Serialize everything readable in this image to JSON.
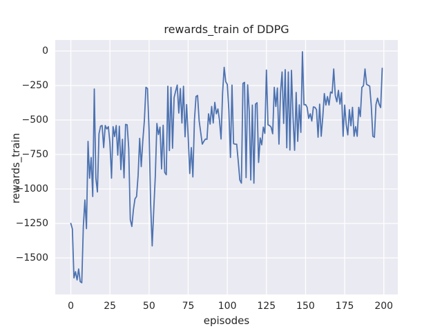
{
  "chart_data": {
    "type": "line",
    "title": "rewards_train of DDPG",
    "xlabel": "episodes",
    "ylabel": "rewards_train",
    "legend": false,
    "grid": true,
    "line_color": "#4c72b0",
    "plot_background": "#eaeaf2",
    "gridline_color": "#ffffff",
    "figure_background": "#ffffff",
    "text_color": "#262626",
    "x_start": 0,
    "x_step": 1,
    "xlim": [
      -9.95,
      208.95
    ],
    "ylim": [
      -1765,
      80
    ],
    "xticks": [
      0,
      25,
      50,
      75,
      100,
      125,
      150,
      175,
      200
    ],
    "yticks": [
      0,
      -250,
      -500,
      -750,
      -1000,
      -1250,
      -1500
    ],
    "values": [
      -1250,
      -1290,
      -1645,
      -1600,
      -1660,
      -1580,
      -1672,
      -1680,
      -1270,
      -1080,
      -1288,
      -655,
      -922,
      -772,
      -1055,
      -275,
      -922,
      -1022,
      -600,
      -545,
      -540,
      -700,
      -540,
      -565,
      -548,
      -668,
      -922,
      -548,
      -620,
      -540,
      -755,
      -545,
      -860,
      -640,
      -920,
      -532,
      -535,
      -705,
      -1222,
      -1272,
      -1150,
      -1072,
      -1055,
      -903,
      -633,
      -838,
      -650,
      -505,
      -263,
      -272,
      -573,
      -1105,
      -1413,
      -1150,
      -905,
      -525,
      -605,
      -552,
      -855,
      -538,
      -880,
      -897,
      -255,
      -722,
      -263,
      -705,
      -338,
      -290,
      -247,
      -450,
      -272,
      -522,
      -255,
      -622,
      -388,
      -622,
      -888,
      -700,
      -913,
      -500,
      -330,
      -322,
      -505,
      -590,
      -675,
      -655,
      -638,
      -640,
      -455,
      -530,
      -402,
      -522,
      -372,
      -455,
      -420,
      -502,
      -638,
      -300,
      -118,
      -222,
      -242,
      -430,
      -772,
      -247,
      -672,
      -675,
      -676,
      -800,
      -935,
      -958,
      -235,
      -227,
      -918,
      -245,
      -435,
      -935,
      -392,
      -958,
      -385,
      -375,
      -808,
      -630,
      -680,
      -552,
      -597,
      -138,
      -535,
      -540,
      -552,
      -600,
      -263,
      -402,
      -268,
      -675,
      -300,
      -152,
      -525,
      -135,
      -702,
      -152,
      -718,
      -140,
      -480,
      -720,
      -300,
      -655,
      -390,
      -590,
      -5,
      -390,
      -388,
      -408,
      -488,
      -455,
      -508,
      -405,
      -408,
      -425,
      -625,
      -385,
      -618,
      -480,
      -308,
      -392,
      -330,
      -392,
      -297,
      -305,
      -130,
      -322,
      -368,
      -285,
      -385,
      -302,
      -618,
      -392,
      -535,
      -608,
      -425,
      -542,
      -408,
      -618,
      -548,
      -618,
      -408,
      -475,
      -263,
      -252,
      -130,
      -242,
      -248,
      -255,
      -397,
      -618,
      -625,
      -388,
      -342,
      -385,
      -410,
      -125
    ]
  }
}
